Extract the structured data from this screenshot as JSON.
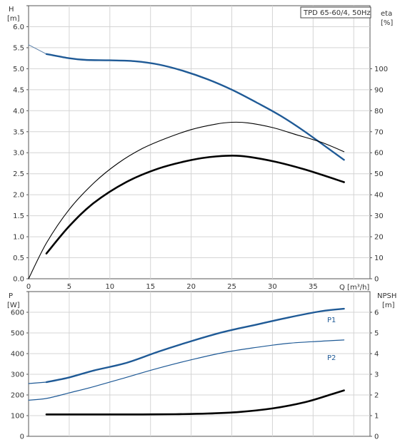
{
  "title": "TPD 65-60/4, 50Hz",
  "chart_data": [
    {
      "type": "line",
      "panel": "head-efficiency",
      "xlabel": "Q [m³/h]",
      "ylabel_left_unit": "H",
      "ylabel_left_unit2": "[m]",
      "ylabel_right_unit": "eta",
      "ylabel_right_unit2": "[%]",
      "xlim": [
        0,
        42
      ],
      "xticks": [
        0,
        5,
        10,
        15,
        20,
        25,
        30,
        35
      ],
      "ylim_left": [
        0,
        6.5
      ],
      "yticks_left": [
        0.0,
        0.5,
        1.0,
        1.5,
        2.0,
        2.5,
        3.0,
        3.5,
        4.0,
        4.5,
        5.0,
        5.5,
        6.0
      ],
      "ylim_right": [
        0,
        130
      ],
      "yticks_right": [
        0,
        10,
        20,
        30,
        40,
        50,
        60,
        70,
        80,
        90,
        100
      ],
      "grid": true,
      "series": [
        {
          "axis": "left",
          "style": "thin-grey",
          "color": "#5a7fa8",
          "x": [
            0,
            2.2
          ],
          "y": [
            5.57,
            5.35
          ]
        },
        {
          "axis": "left",
          "style": "thick-blue",
          "color": "#1f5a96",
          "x": [
            2.2,
            5,
            7,
            10,
            13,
            16,
            19,
            22,
            25,
            28,
            31,
            34,
            38.8
          ],
          "y": [
            5.35,
            5.25,
            5.21,
            5.2,
            5.18,
            5.1,
            4.95,
            4.75,
            4.5,
            4.2,
            3.88,
            3.5,
            2.83
          ]
        },
        {
          "axis": "right",
          "style": "thin-black",
          "color": "#000000",
          "x": [
            0,
            2.2,
            5,
            8,
            11,
            14,
            17,
            20,
            23,
            25,
            27,
            30,
            33,
            36,
            38.8
          ],
          "y": [
            0,
            17,
            33,
            45.5,
            55,
            62,
            67,
            71,
            73.6,
            74.5,
            74.2,
            72,
            68.5,
            65,
            60.5
          ]
        },
        {
          "axis": "right",
          "style": "thick-black",
          "color": "#000000",
          "x": [
            2.2,
            5,
            8,
            12,
            16,
            20,
            23,
            26,
            30,
            34,
            38.8
          ],
          "y": [
            12,
            25,
            36,
            46,
            52.5,
            56.5,
            58.2,
            58.5,
            56,
            52,
            46
          ]
        }
      ]
    },
    {
      "type": "line",
      "panel": "power-npsh",
      "ylabel_left_unit": "P",
      "ylabel_left_unit2": "[W]",
      "ylabel_right_unit": "NPSH",
      "ylabel_right_unit2": "[m]",
      "xlim": [
        0,
        42
      ],
      "ylim_left": [
        0,
        700
      ],
      "yticks_left": [
        0,
        100,
        200,
        300,
        400,
        500,
        600
      ],
      "ylim_right": [
        0,
        7
      ],
      "yticks_right": [
        0,
        1,
        2,
        3,
        4,
        5,
        6
      ],
      "grid": true,
      "series": [
        {
          "name": "P1",
          "axis": "left",
          "style": "thin-blue",
          "color": "#1f5a96",
          "x": [
            0,
            2.2
          ],
          "y": [
            255,
            262
          ]
        },
        {
          "name": "P1",
          "axis": "left",
          "style": "thick-blue",
          "color": "#1f5a96",
          "x": [
            2.2,
            5,
            8,
            12,
            16,
            20,
            24,
            28,
            32,
            36,
            38.8
          ],
          "y": [
            262,
            285,
            318,
            355,
            410,
            460,
            505,
            540,
            575,
            605,
            617
          ]
        },
        {
          "name": "P2",
          "axis": "left",
          "style": "thin-blue",
          "color": "#1f5a96",
          "x": [
            0,
            2.2,
            5,
            8,
            12,
            16,
            20,
            24,
            28,
            32,
            36,
            38.8
          ],
          "y": [
            175,
            183,
            210,
            240,
            285,
            330,
            370,
            405,
            430,
            450,
            460,
            466
          ]
        },
        {
          "axis": "right",
          "style": "thick-black",
          "color": "#000000",
          "x": [
            2.2,
            6,
            10,
            14,
            18,
            22,
            26,
            30,
            34,
            37,
            38.8
          ],
          "y": [
            1.06,
            1.06,
            1.06,
            1.06,
            1.07,
            1.1,
            1.18,
            1.35,
            1.65,
            2.0,
            2.22
          ]
        }
      ]
    }
  ]
}
